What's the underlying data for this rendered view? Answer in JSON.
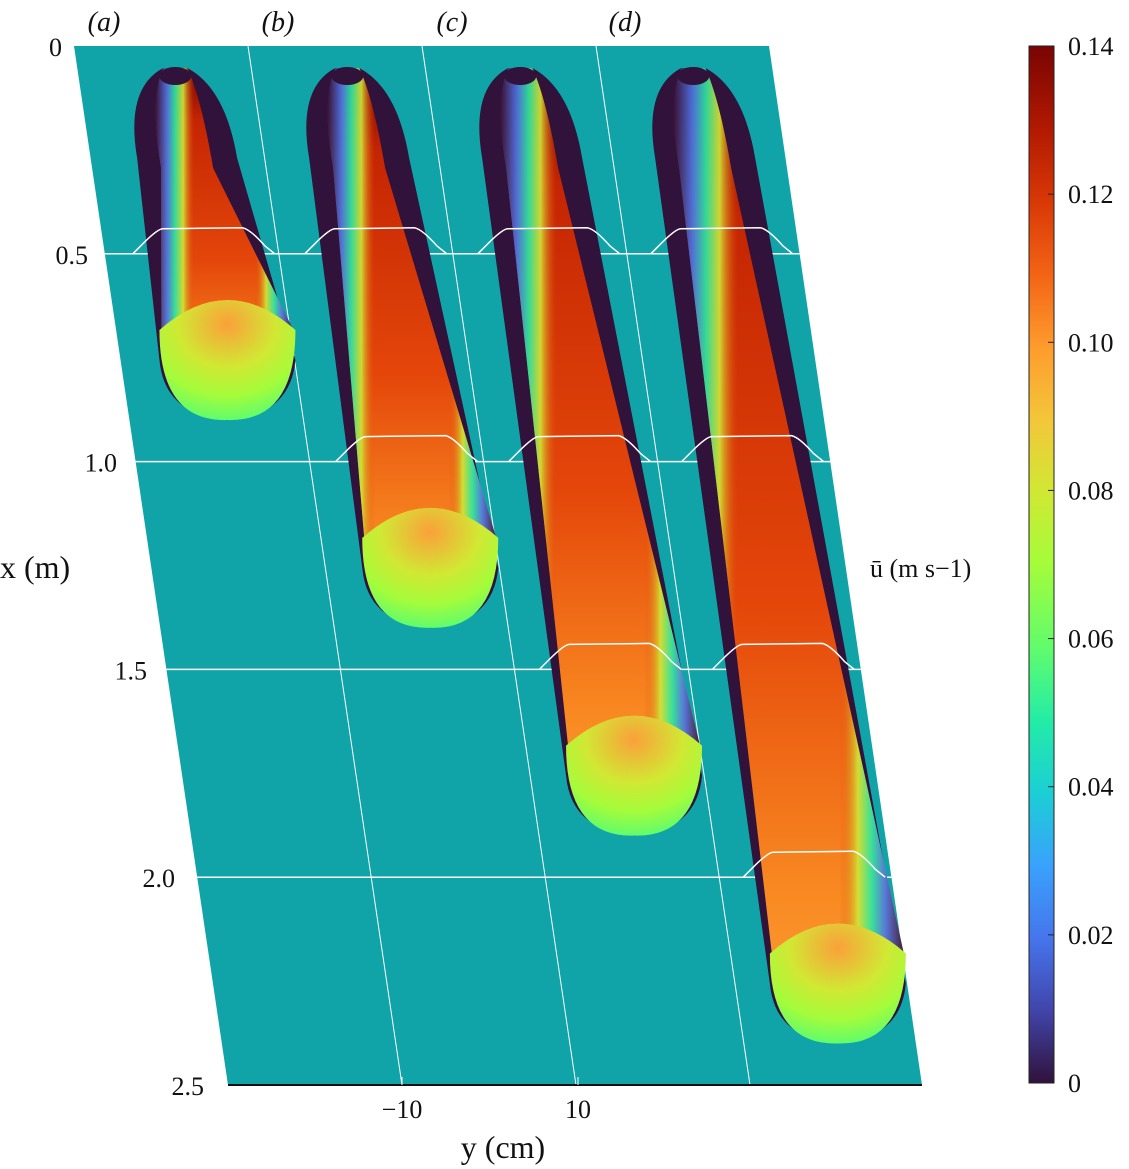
{
  "chart_data": {
    "type": "heatmap",
    "panel_labels": [
      "(a)",
      "(b)",
      "(c)",
      "(d)"
    ],
    "xlabel": "x (m)",
    "ylabel": "y (cm)",
    "x_ticks": [
      "0",
      "0.5",
      "1.0",
      "1.5",
      "2.0",
      "2.5"
    ],
    "x_tick_values": [
      0,
      0.5,
      1.0,
      1.5,
      2.0,
      2.5
    ],
    "xlim": [
      0,
      2.5
    ],
    "y_ticks": [
      "−10",
      "10"
    ],
    "y_tick_values": [
      -10,
      10
    ],
    "colorbar": {
      "label": "ū (m s−1)",
      "ticks": [
        "0",
        "0.02",
        "0.04",
        "0.06",
        "0.08",
        "0.10",
        "0.12",
        "0.14"
      ],
      "tick_values": [
        0,
        0.02,
        0.04,
        0.06,
        0.08,
        0.1,
        0.12,
        0.14
      ],
      "range": [
        0,
        0.14
      ],
      "colormap": "turbo"
    },
    "panels": [
      {
        "label": "(a)",
        "current_length_m": 0.9,
        "contour_x_m": [
          0.5
        ]
      },
      {
        "label": "(b)",
        "current_length_m": 1.4,
        "contour_x_m": [
          0.5,
          1.0
        ]
      },
      {
        "label": "(c)",
        "current_length_m": 1.9,
        "contour_x_m": [
          0.5,
          1.0,
          1.5
        ]
      },
      {
        "label": "(d)",
        "current_length_m": 2.4,
        "contour_x_m": [
          0.5,
          1.0,
          1.5,
          2.0
        ]
      }
    ],
    "background_value_ms": 0.045,
    "grid": true
  }
}
